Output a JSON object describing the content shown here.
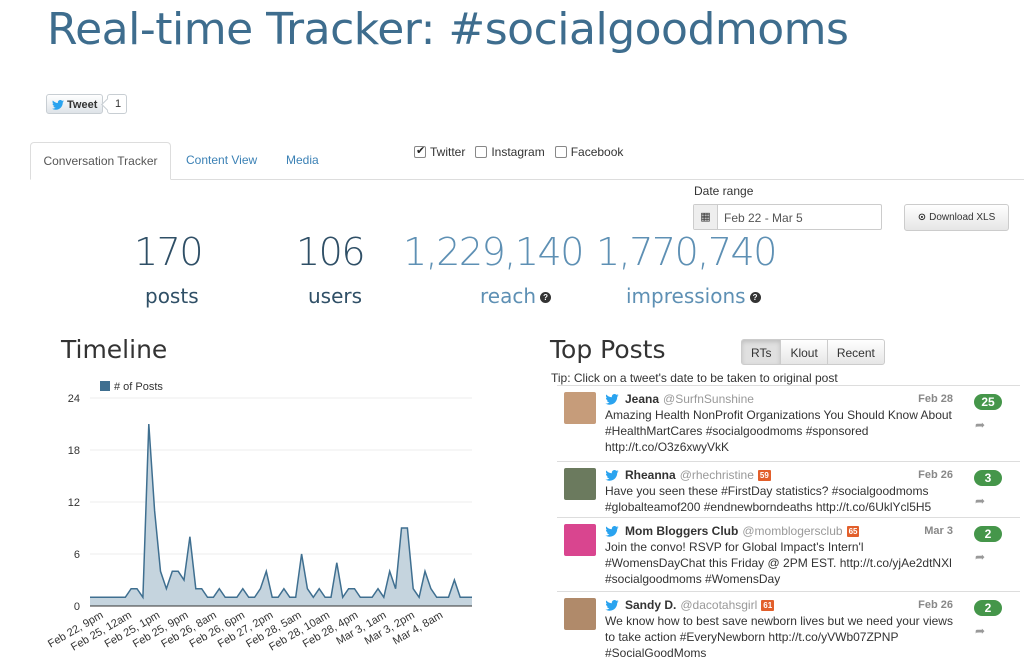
{
  "title": "Real-time Tracker: #socialgoodmoms",
  "tweet_button": {
    "label": "Tweet",
    "count": "1"
  },
  "tabs": [
    {
      "label": "Conversation Tracker"
    },
    {
      "label": "Content View"
    },
    {
      "label": "Media"
    }
  ],
  "sources": [
    {
      "label": "Twitter",
      "checked": true
    },
    {
      "label": "Instagram",
      "checked": false
    },
    {
      "label": "Facebook",
      "checked": false
    }
  ],
  "date_range": {
    "label": "Date range",
    "value": "Feb 22 - Mar 5"
  },
  "download": {
    "label": "Download XLS"
  },
  "stats": {
    "posts": {
      "value": "170",
      "label": "posts"
    },
    "users": {
      "value": "106",
      "label": "users"
    },
    "reach": {
      "value": "1,229,140",
      "label": "reach"
    },
    "impressions": {
      "value": "1,770,740",
      "label": "impressions"
    }
  },
  "timeline": {
    "title": "Timeline",
    "chart_data": {
      "type": "area",
      "legend": "# of Posts",
      "legend_position": "top-left",
      "y_ticks": [
        0,
        6,
        12,
        18,
        24
      ],
      "ylim": [
        0,
        24
      ],
      "x_tick_labels": [
        "Feb 22, 9pm",
        "Feb 25, 12am",
        "Feb 25, 1pm",
        "Feb 25, 9pm",
        "Feb 26, 8am",
        "Feb 26, 6pm",
        "Feb 27, 2pm",
        "Feb 28, 5am",
        "Feb 28, 10am",
        "Feb 28, 4pm",
        "Mar 3, 1am",
        "Mar 3, 2pm",
        "Mar 4, 8am"
      ],
      "series": [
        {
          "values": [
            1,
            1,
            1,
            1,
            1,
            1,
            1,
            2,
            2,
            1,
            21,
            11,
            4,
            2,
            4,
            4,
            3,
            8,
            2,
            2,
            1,
            1,
            2,
            1,
            1,
            1,
            2,
            1,
            1,
            2,
            4,
            1,
            1,
            2,
            1,
            1,
            6,
            2,
            1,
            2,
            1,
            1,
            5,
            1,
            2,
            2,
            1,
            1,
            1,
            2,
            1,
            4,
            2,
            9,
            9,
            2,
            1,
            4,
            2,
            1,
            1,
            1,
            3,
            1,
            1,
            1
          ]
        }
      ]
    }
  },
  "top_posts": {
    "title": "Top Posts",
    "sort_buttons": [
      {
        "label": "RTs",
        "active": true
      },
      {
        "label": "Klout",
        "active": false
      },
      {
        "label": "Recent",
        "active": false
      }
    ],
    "tip": "Tip: Click on a tweet's date to be taken to original post",
    "posts": [
      {
        "name": "Jeana",
        "handle": "@SurfnSunshine",
        "klout": "",
        "date": "Feb 28",
        "text": "Amazing Health NonProfit Organizations You Should Know About #HealthMartCares #socialgoodmoms #sponsored http://t.co/O3z6xwyVkK",
        "rts": "25",
        "avatar_color": "#c69c7a"
      },
      {
        "name": "Rheanna",
        "handle": "@rhechristine",
        "klout": "59",
        "date": "Feb 26",
        "text": "Have you seen these #FirstDay statistics? #socialgoodmoms #globalteamof200 #endnewborndeaths http://t.co/6UklYcl5H5",
        "rts": "3",
        "avatar_color": "#6b7a5e"
      },
      {
        "name": "Mom Bloggers Club",
        "handle": "@momblogersclub",
        "klout": "65",
        "date": "Mar 3",
        "text": "Join the convo! RSVP for Global Impact's Intern'l #WomensDayChat this Friday @ 2PM EST. http://t.co/yjAe2dtNXl #socialgoodmoms #WomensDay",
        "rts": "2",
        "avatar_color": "#d9458f"
      },
      {
        "name": "Sandy D.",
        "handle": "@dacotahsgirl",
        "klout": "61",
        "date": "Feb 26",
        "text": "We know how to best save newborn lives but we need your views to take action #EveryNewborn http://t.co/yVWb07ZPNP #SocialGoodMoms",
        "rts": "2",
        "avatar_color": "#b08a6a"
      }
    ]
  },
  "colors": {
    "brand": "#3e6d8e",
    "series": "#3f6f90",
    "series_fill": "#c5d4de",
    "rt_badge": "#45964a",
    "klout": "#e25f2b",
    "link": "#3b81b5"
  }
}
